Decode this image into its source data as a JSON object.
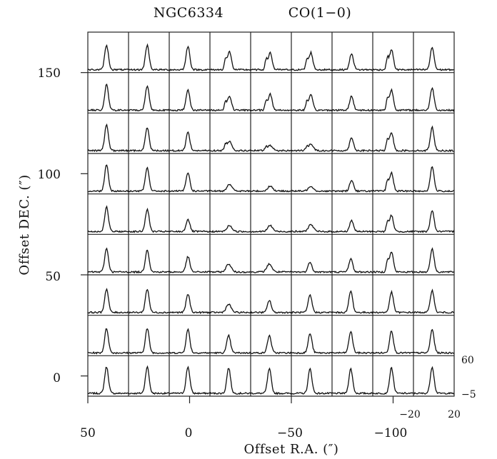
{
  "title": {
    "source": "NGC6334",
    "line": "CO(1−0)"
  },
  "chart_data": {
    "type": "spectral_map_grid",
    "xlabel": "Offset R.A. (″)",
    "ylabel": "Offset DEC. (″)",
    "x_ticks": [
      {
        "label": "50",
        "value": 50
      },
      {
        "label": "0",
        "value": 0
      },
      {
        "label": "−50",
        "value": -50
      },
      {
        "label": "−100",
        "value": -100
      }
    ],
    "y_ticks": [
      {
        "label": "0",
        "value": 0
      },
      {
        "label": "50",
        "value": 50
      },
      {
        "label": "100",
        "value": 100
      },
      {
        "label": "150",
        "value": 150
      }
    ],
    "ra_offsets": [
      40,
      20,
      0,
      -20,
      -40,
      -60,
      -80,
      -100,
      -120
    ],
    "dec_offsets": [
      0,
      20,
      40,
      60,
      80,
      100,
      120,
      140,
      160
    ],
    "inset_velocity_axis": {
      "ticks": [
        "−20",
        "20"
      ],
      "range": [
        -60,
        30
      ]
    },
    "inset_intensity_axis": {
      "ticks": [
        "−5",
        "60"
      ],
      "range": [
        -5,
        60
      ]
    },
    "spectra_peak_intensity": [
      [
        52,
        52,
        52,
        50,
        48,
        48,
        48,
        50,
        52
      ],
      [
        48,
        48,
        46,
        34,
        34,
        38,
        42,
        44,
        46
      ],
      [
        46,
        46,
        36,
        16,
        24,
        34,
        42,
        40,
        44
      ],
      [
        46,
        44,
        30,
        16,
        16,
        20,
        26,
        40,
        46
      ],
      [
        48,
        44,
        24,
        12,
        12,
        14,
        22,
        32,
        42
      ],
      [
        52,
        46,
        36,
        14,
        10,
        10,
        22,
        36,
        48
      ],
      [
        50,
        46,
        36,
        18,
        10,
        12,
        26,
        36,
        46
      ],
      [
        50,
        48,
        40,
        28,
        32,
        30,
        28,
        40,
        44
      ],
      [
        48,
        48,
        46,
        36,
        34,
        34,
        32,
        40,
        44
      ]
    ]
  }
}
